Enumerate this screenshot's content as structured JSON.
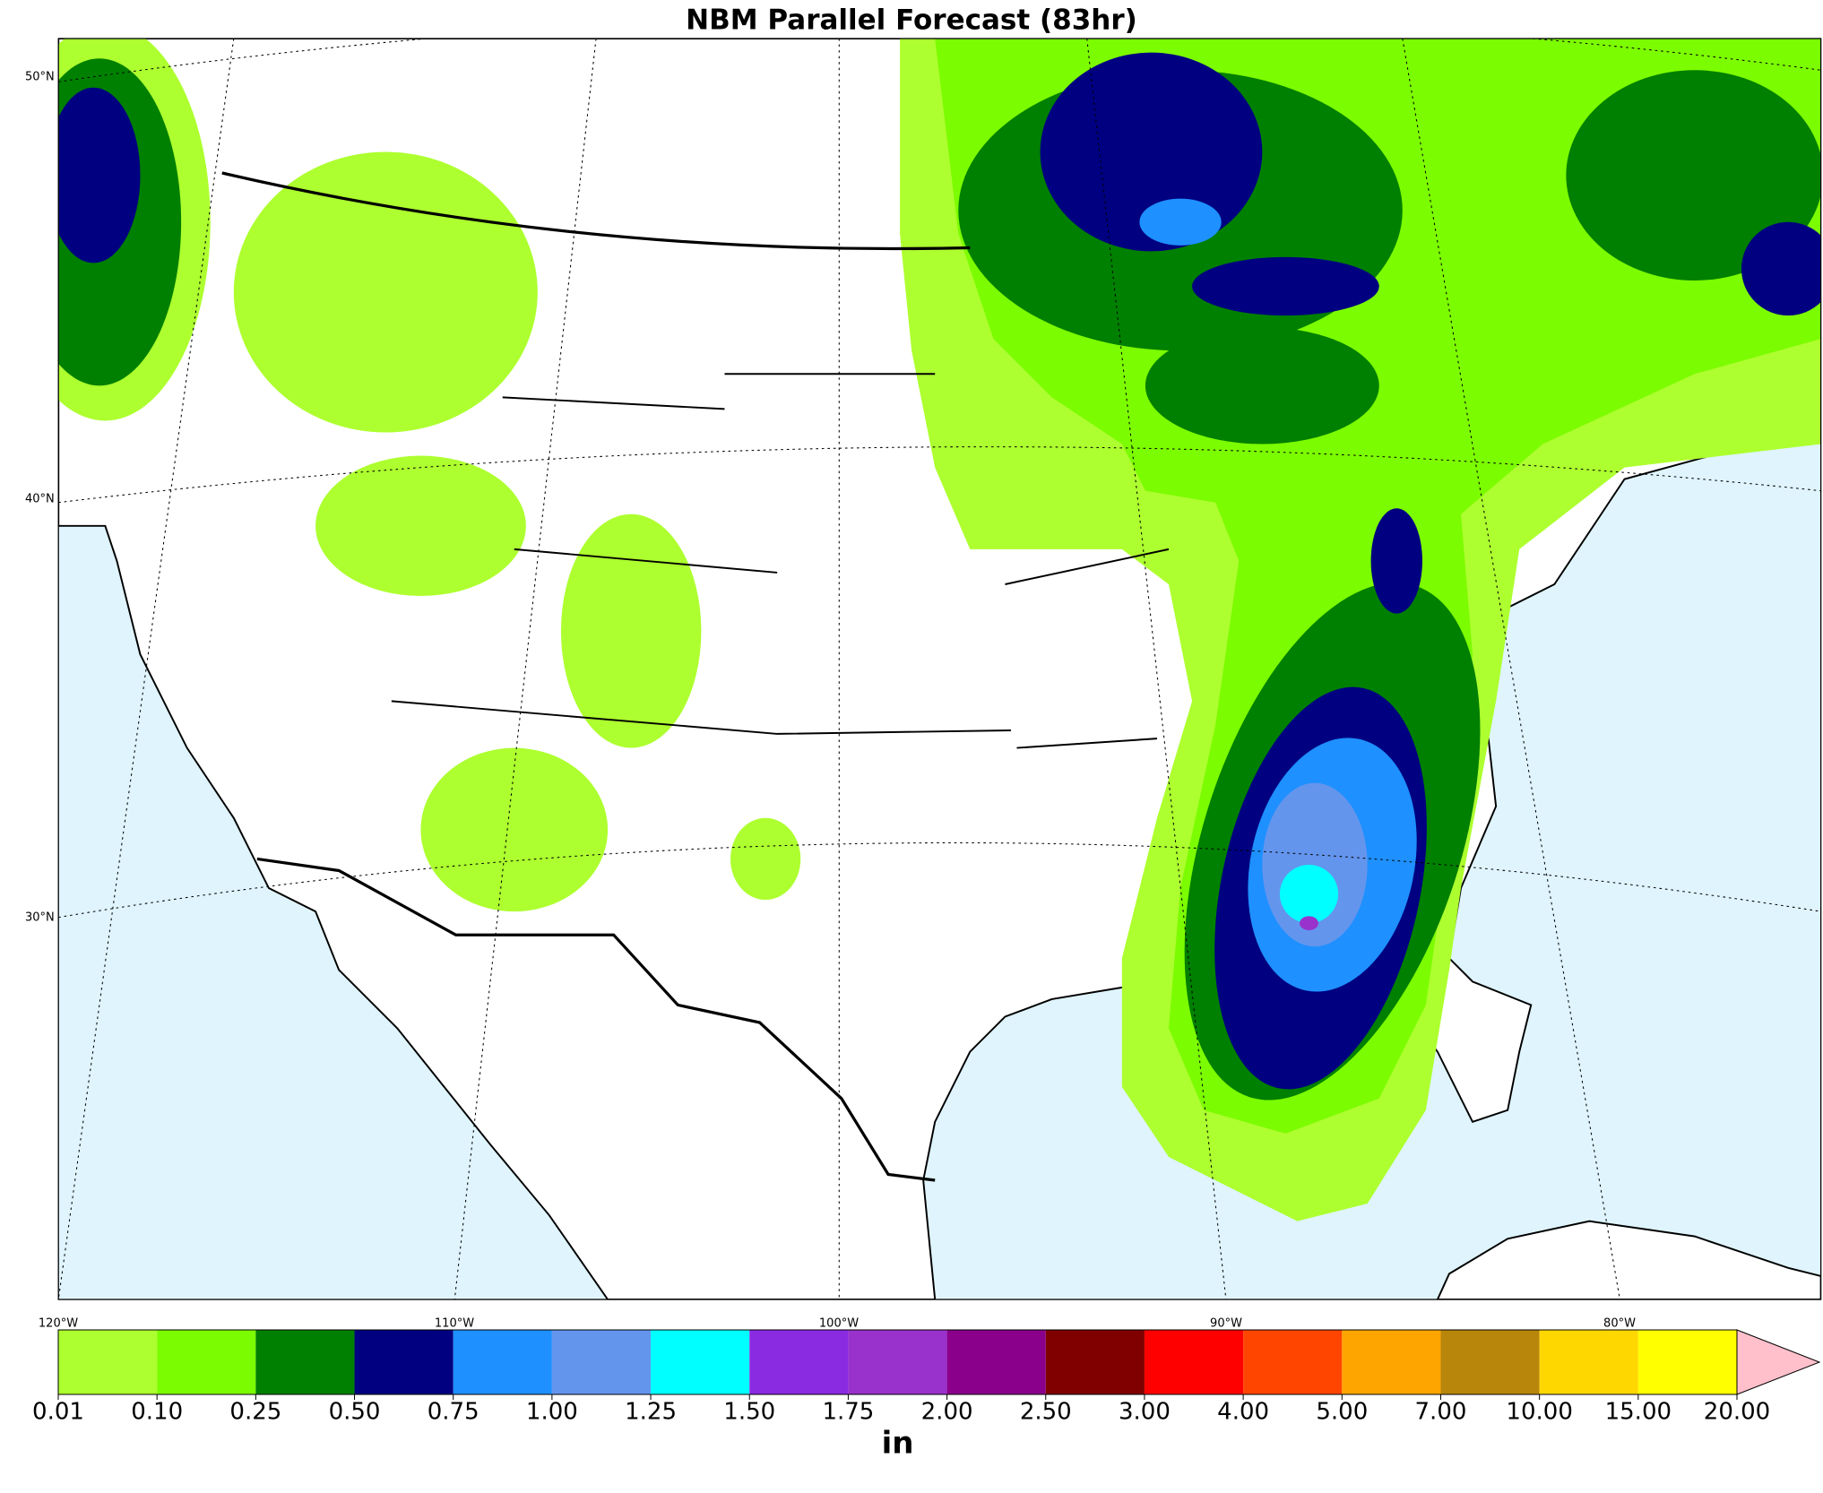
{
  "title": "NBM Parallel Forecast (83hr)",
  "map": {
    "lat_labels": [
      "50°N",
      "40°N",
      "30°N"
    ],
    "lon_labels": [
      "120°W",
      "110°W",
      "100°W",
      "90°W",
      "80°W"
    ]
  },
  "colorbar": {
    "levels": [
      {
        "value": 0.01,
        "label": "0.01"
      },
      {
        "value": 0.1,
        "label": "0.10"
      },
      {
        "value": 0.25,
        "label": "0.25"
      },
      {
        "value": 0.5,
        "label": "0.50"
      },
      {
        "value": 0.75,
        "label": "0.75"
      },
      {
        "value": 1,
        "label": "1.00"
      },
      {
        "value": 1.25,
        "label": "1.25"
      },
      {
        "value": 1.5,
        "label": "1.50"
      },
      {
        "value": 1.75,
        "label": "1.75"
      },
      {
        "value": 2,
        "label": "2.00"
      },
      {
        "value": 2.5,
        "label": "2.50"
      },
      {
        "value": 3,
        "label": "3.00"
      },
      {
        "value": 4,
        "label": "4.00"
      },
      {
        "value": 5,
        "label": "5.00"
      },
      {
        "value": 7,
        "label": "7.00"
      },
      {
        "value": 10,
        "label": "10.00"
      },
      {
        "value": 15,
        "label": "15.00"
      },
      {
        "value": 20,
        "label": "20.00"
      }
    ],
    "colors": [
      "#adff2f",
      "#7cfc00",
      "#008000",
      "#000080",
      "#1e90ff",
      "#6495ed",
      "#00ffff",
      "#8a2be2",
      "#9932cc",
      "#8b008b",
      "#800000",
      "#ff0000",
      "#ff4500",
      "#ffa500",
      "#b8860b",
      "#ffd700",
      "#ffff00"
    ],
    "extend_color": "#ffc0cb",
    "unit": "in"
  }
}
